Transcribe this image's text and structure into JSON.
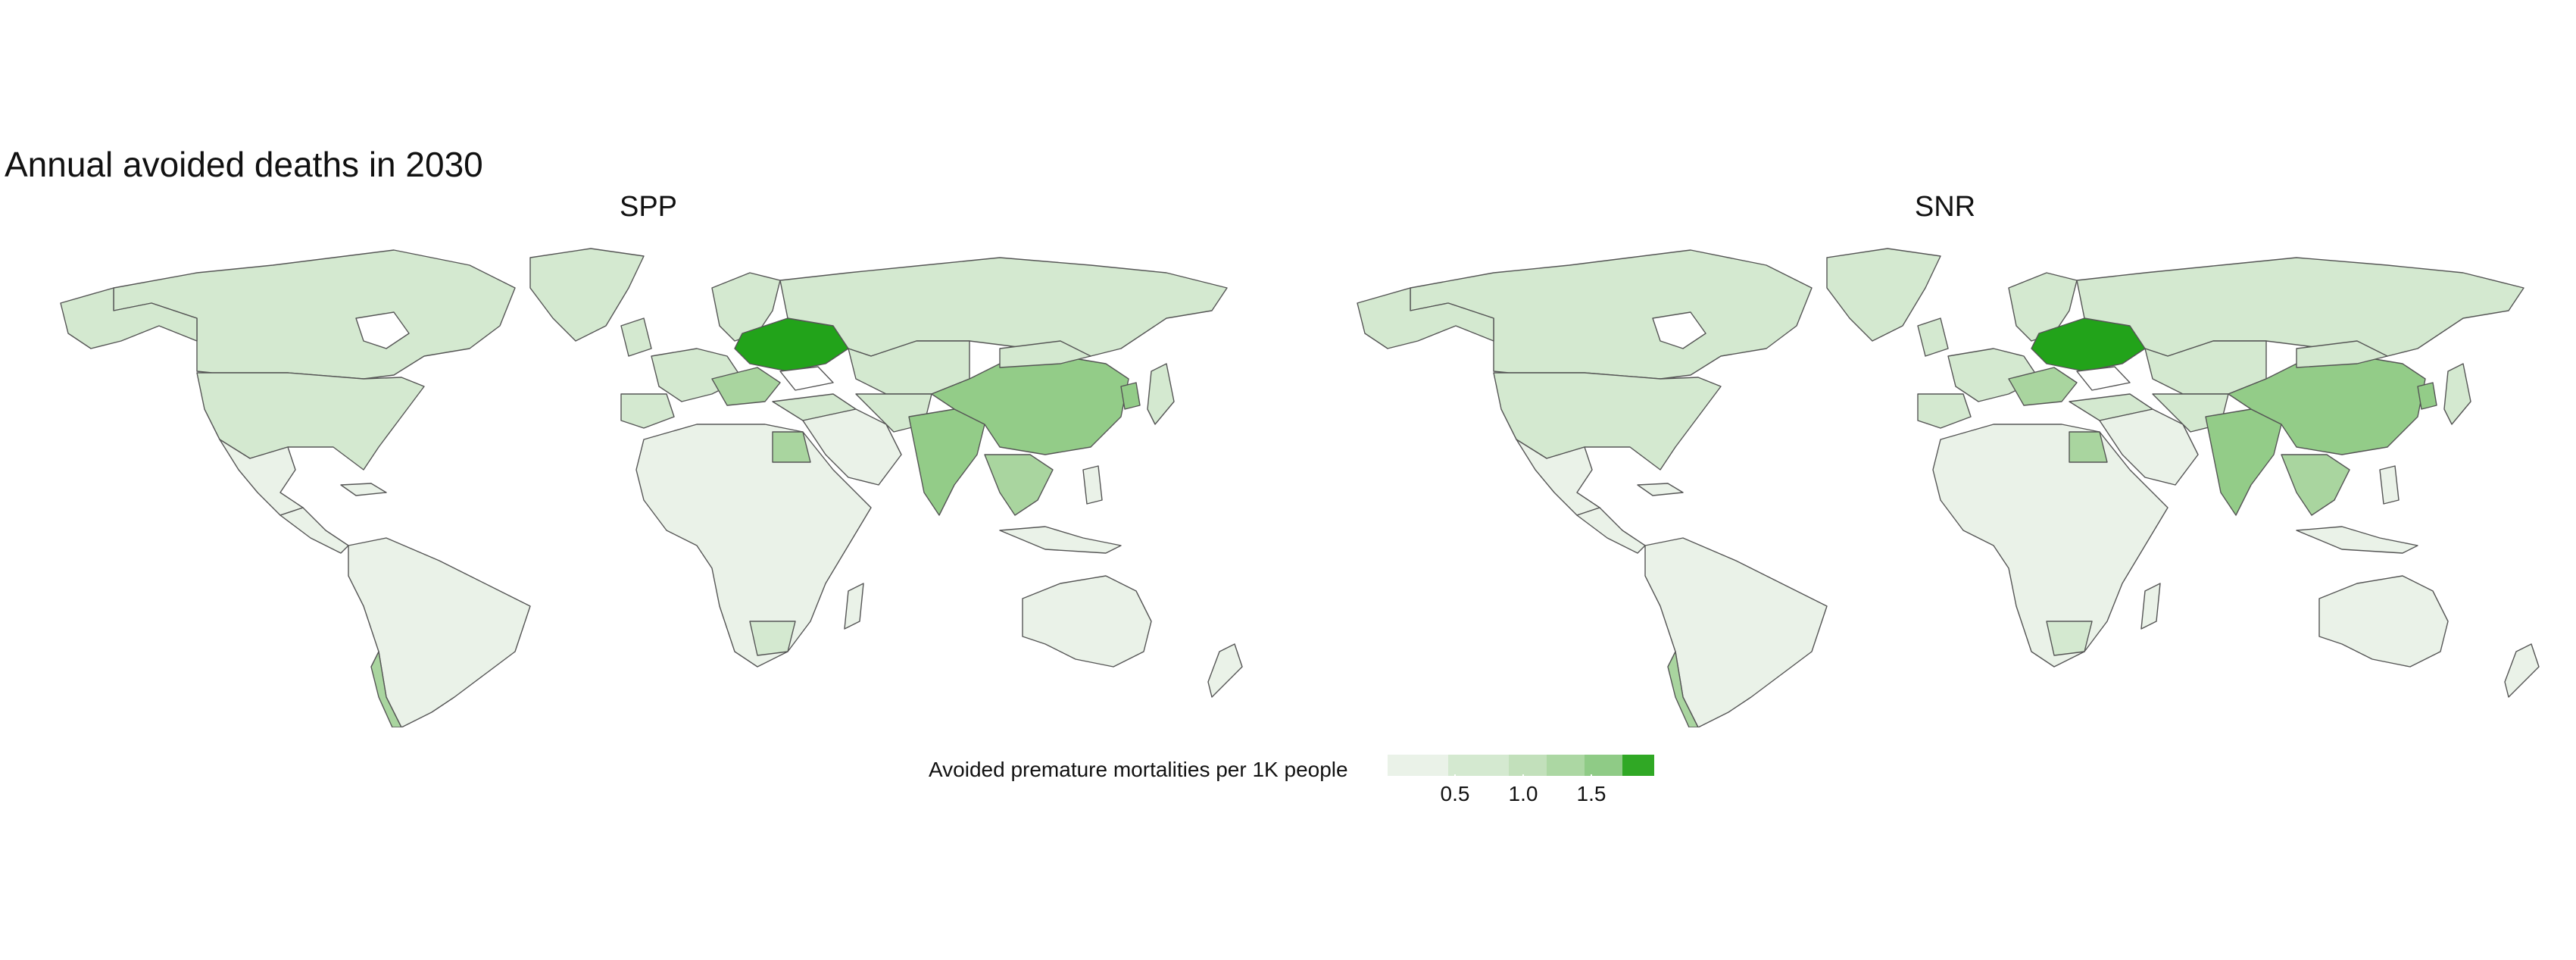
{
  "title": "Annual avoided deaths in 2030",
  "panels": [
    {
      "name": "SPP"
    },
    {
      "name": "SNR"
    }
  ],
  "legend": {
    "title": "Avoided premature mortalities per 1K people",
    "ticks": [
      "0.5",
      "1.0",
      "1.5"
    ],
    "colors": [
      "#eaf2e8",
      "#d4e9d0",
      "#c2e0bb",
      "#acd7a3",
      "#8fcb86",
      "#30a825"
    ]
  },
  "colors": {
    "very_low": "#eaf2e8",
    "low": "#d4e9d0",
    "mid": "#a9d59f",
    "high": "#93cc88",
    "max": "#22a31a",
    "border": "#555555"
  }
}
